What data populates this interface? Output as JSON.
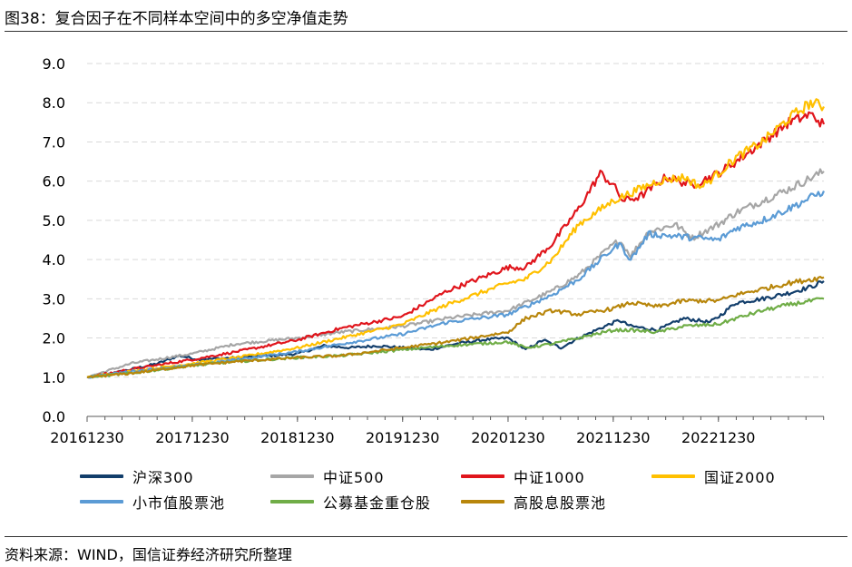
{
  "title": "图38：复合因子在不同样本空间中的多空净值走势",
  "source": "资料来源：WIND，国信证券经济研究所整理",
  "chart_data": {
    "type": "line",
    "y_ticks": [
      "0.0",
      "1.0",
      "2.0",
      "3.0",
      "4.0",
      "5.0",
      "6.0",
      "7.0",
      "8.0",
      "9.0"
    ],
    "ylim": [
      0,
      9
    ],
    "x_ticks": [
      "20161230",
      "20171230",
      "20181230",
      "20191230",
      "20201230",
      "20211230",
      "20221230"
    ],
    "xlim": [
      "2016-12-30",
      "2023-12-31"
    ],
    "grid": "horizontal dashed",
    "legend_position": "bottom",
    "series": [
      {
        "name": "沪深300",
        "color": "#123e6b",
        "points": [
          [
            "2016-12-30",
            1.0
          ],
          [
            "2017-03-01",
            1.05
          ],
          [
            "2017-06-01",
            1.2
          ],
          [
            "2017-09-01",
            1.35
          ],
          [
            "2017-11-15",
            1.55
          ],
          [
            "2018-01-20",
            1.45
          ],
          [
            "2018-06-01",
            1.5
          ],
          [
            "2018-10-01",
            1.55
          ],
          [
            "2019-01-01",
            1.6
          ],
          [
            "2019-04-01",
            1.8
          ],
          [
            "2019-07-01",
            1.75
          ],
          [
            "2019-10-01",
            1.8
          ],
          [
            "2020-01-01",
            1.75
          ],
          [
            "2020-04-01",
            1.7
          ],
          [
            "2020-07-01",
            1.85
          ],
          [
            "2020-10-01",
            1.95
          ],
          [
            "2020-12-30",
            2.0
          ],
          [
            "2021-03-01",
            1.7
          ],
          [
            "2021-05-01",
            1.95
          ],
          [
            "2021-07-01",
            1.75
          ],
          [
            "2021-09-01",
            2.0
          ],
          [
            "2021-12-01",
            2.3
          ],
          [
            "2022-01-20",
            2.45
          ],
          [
            "2022-03-01",
            2.3
          ],
          [
            "2022-06-01",
            2.2
          ],
          [
            "2022-09-01",
            2.5
          ],
          [
            "2022-12-01",
            2.4
          ],
          [
            "2023-01-01",
            2.55
          ],
          [
            "2023-03-01",
            2.9
          ],
          [
            "2023-06-01",
            3.0
          ],
          [
            "2023-09-01",
            3.15
          ],
          [
            "2023-11-15",
            3.3
          ],
          [
            "2023-12-31",
            3.45
          ]
        ]
      },
      {
        "name": "中证500",
        "color": "#a6a6a6",
        "points": [
          [
            "2016-12-30",
            1.0
          ],
          [
            "2017-06-01",
            1.35
          ],
          [
            "2017-12-30",
            1.6
          ],
          [
            "2018-06-01",
            1.85
          ],
          [
            "2018-12-30",
            2.0
          ],
          [
            "2019-06-01",
            2.15
          ],
          [
            "2019-12-30",
            2.3
          ],
          [
            "2020-06-01",
            2.5
          ],
          [
            "2020-12-30",
            2.7
          ],
          [
            "2021-06-01",
            3.2
          ],
          [
            "2021-09-01",
            3.6
          ],
          [
            "2021-12-01",
            4.2
          ],
          [
            "2022-01-20",
            4.5
          ],
          [
            "2022-03-01",
            4.1
          ],
          [
            "2022-05-01",
            4.7
          ],
          [
            "2022-08-01",
            4.9
          ],
          [
            "2022-10-01",
            4.55
          ],
          [
            "2022-12-30",
            4.9
          ],
          [
            "2023-03-01",
            5.2
          ],
          [
            "2023-06-01",
            5.5
          ],
          [
            "2023-09-01",
            5.8
          ],
          [
            "2023-12-31",
            6.25
          ]
        ]
      },
      {
        "name": "中证1000",
        "color": "#e0151c",
        "points": [
          [
            "2016-12-30",
            1.0
          ],
          [
            "2017-06-01",
            1.2
          ],
          [
            "2017-12-30",
            1.45
          ],
          [
            "2018-06-01",
            1.65
          ],
          [
            "2018-12-30",
            1.95
          ],
          [
            "2019-06-01",
            2.25
          ],
          [
            "2019-12-30",
            2.55
          ],
          [
            "2020-06-01",
            3.2
          ],
          [
            "2020-12-30",
            3.8
          ],
          [
            "2021-03-01",
            3.8
          ],
          [
            "2021-06-01",
            4.4
          ],
          [
            "2021-09-01",
            5.3
          ],
          [
            "2021-11-15",
            6.2
          ],
          [
            "2021-12-30",
            5.9
          ],
          [
            "2022-02-01",
            5.5
          ],
          [
            "2022-04-01",
            5.6
          ],
          [
            "2022-07-01",
            6.1
          ],
          [
            "2022-10-01",
            5.9
          ],
          [
            "2022-12-30",
            6.2
          ],
          [
            "2023-03-01",
            6.5
          ],
          [
            "2023-06-01",
            7.0
          ],
          [
            "2023-09-01",
            7.5
          ],
          [
            "2023-11-15",
            7.7
          ],
          [
            "2023-12-31",
            7.45
          ]
        ]
      },
      {
        "name": "国证2000",
        "color": "#ffc000",
        "points": [
          [
            "2016-12-30",
            1.0
          ],
          [
            "2017-06-01",
            1.15
          ],
          [
            "2017-12-30",
            1.35
          ],
          [
            "2018-06-01",
            1.5
          ],
          [
            "2018-12-30",
            1.75
          ],
          [
            "2019-06-01",
            2.0
          ],
          [
            "2019-12-30",
            2.35
          ],
          [
            "2020-06-01",
            2.85
          ],
          [
            "2020-12-30",
            3.4
          ],
          [
            "2021-03-01",
            3.5
          ],
          [
            "2021-06-01",
            4.0
          ],
          [
            "2021-09-01",
            4.9
          ],
          [
            "2021-12-30",
            5.5
          ],
          [
            "2022-03-01",
            5.7
          ],
          [
            "2022-06-01",
            6.0
          ],
          [
            "2022-09-01",
            6.1
          ],
          [
            "2022-11-01",
            5.85
          ],
          [
            "2022-12-30",
            6.2
          ],
          [
            "2023-03-01",
            6.6
          ],
          [
            "2023-06-01",
            7.0
          ],
          [
            "2023-09-01",
            7.6
          ],
          [
            "2023-11-15",
            8.0
          ],
          [
            "2023-12-31",
            7.9
          ]
        ]
      },
      {
        "name": "小市值股票池",
        "color": "#5b9bd5",
        "points": [
          [
            "2016-12-30",
            1.0
          ],
          [
            "2017-06-01",
            1.15
          ],
          [
            "2017-12-30",
            1.3
          ],
          [
            "2018-06-01",
            1.45
          ],
          [
            "2018-12-30",
            1.65
          ],
          [
            "2019-06-01",
            1.85
          ],
          [
            "2019-12-30",
            2.1
          ],
          [
            "2020-06-01",
            2.4
          ],
          [
            "2020-12-30",
            2.6
          ],
          [
            "2021-06-01",
            3.1
          ],
          [
            "2021-09-01",
            3.5
          ],
          [
            "2021-12-01",
            4.1
          ],
          [
            "2022-01-20",
            4.4
          ],
          [
            "2022-03-01",
            4.0
          ],
          [
            "2022-05-01",
            4.65
          ],
          [
            "2022-08-01",
            4.6
          ],
          [
            "2022-12-30",
            4.5
          ],
          [
            "2023-03-01",
            4.8
          ],
          [
            "2023-06-01",
            5.0
          ],
          [
            "2023-09-01",
            5.3
          ],
          [
            "2023-12-31",
            5.75
          ]
        ]
      },
      {
        "name": "公募基金重仓股",
        "color": "#70ad47",
        "points": [
          [
            "2016-12-30",
            1.0
          ],
          [
            "2017-06-01",
            1.1
          ],
          [
            "2017-12-30",
            1.3
          ],
          [
            "2018-06-01",
            1.4
          ],
          [
            "2018-12-30",
            1.5
          ],
          [
            "2019-06-01",
            1.55
          ],
          [
            "2019-12-30",
            1.7
          ],
          [
            "2020-06-01",
            1.8
          ],
          [
            "2020-12-30",
            1.9
          ],
          [
            "2021-03-01",
            1.75
          ],
          [
            "2021-06-01",
            1.85
          ],
          [
            "2021-09-01",
            2.0
          ],
          [
            "2021-12-30",
            2.2
          ],
          [
            "2022-03-01",
            2.2
          ],
          [
            "2022-06-01",
            2.15
          ],
          [
            "2022-09-01",
            2.3
          ],
          [
            "2022-12-30",
            2.35
          ],
          [
            "2023-03-01",
            2.5
          ],
          [
            "2023-06-01",
            2.7
          ],
          [
            "2023-09-01",
            2.85
          ],
          [
            "2023-12-31",
            3.0
          ]
        ]
      },
      {
        "name": "高股息股票池",
        "color": "#b8860b",
        "points": [
          [
            "2016-12-30",
            1.0
          ],
          [
            "2017-06-01",
            1.1
          ],
          [
            "2017-12-30",
            1.3
          ],
          [
            "2018-06-01",
            1.4
          ],
          [
            "2018-12-30",
            1.5
          ],
          [
            "2019-06-01",
            1.55
          ],
          [
            "2019-12-30",
            1.75
          ],
          [
            "2020-06-01",
            1.9
          ],
          [
            "2020-12-30",
            2.15
          ],
          [
            "2021-03-01",
            2.5
          ],
          [
            "2021-06-01",
            2.7
          ],
          [
            "2021-09-01",
            2.6
          ],
          [
            "2021-12-30",
            2.75
          ],
          [
            "2022-03-01",
            2.9
          ],
          [
            "2022-06-01",
            2.8
          ],
          [
            "2022-09-01",
            2.95
          ],
          [
            "2022-12-30",
            2.95
          ],
          [
            "2023-03-01",
            3.1
          ],
          [
            "2023-06-01",
            3.25
          ],
          [
            "2023-09-01",
            3.4
          ],
          [
            "2023-12-31",
            3.55
          ]
        ]
      }
    ]
  }
}
